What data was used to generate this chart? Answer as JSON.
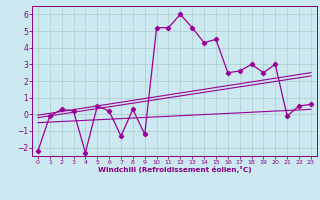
{
  "xlabel": "Windchill (Refroidissement éolien,°C)",
  "xlim": [
    -0.5,
    23.5
  ],
  "ylim": [
    -2.5,
    6.5
  ],
  "yticks": [
    -2,
    -1,
    0,
    1,
    2,
    3,
    4,
    5,
    6
  ],
  "xticks": [
    0,
    1,
    2,
    3,
    4,
    5,
    6,
    7,
    8,
    9,
    10,
    11,
    12,
    13,
    14,
    15,
    16,
    17,
    18,
    19,
    20,
    21,
    22,
    23
  ],
  "bg_color": "#cce8f0",
  "line_color": "#990099",
  "data_x": [
    0,
    1,
    2,
    3,
    4,
    5,
    6,
    7,
    8,
    9,
    10,
    11,
    12,
    13,
    14,
    15,
    16,
    17,
    18,
    19,
    20,
    21,
    22,
    23
  ],
  "data_y": [
    -2.2,
    -0.1,
    0.3,
    0.2,
    -2.3,
    0.5,
    0.2,
    -1.3,
    0.3,
    -1.2,
    5.2,
    5.2,
    6.0,
    5.2,
    4.3,
    4.5,
    2.5,
    2.6,
    3.0,
    2.5,
    3.0,
    -0.1,
    0.5,
    0.6
  ],
  "trend_upper_y0": -0.05,
  "trend_upper_y1": 2.5,
  "trend_mid_y0": -0.2,
  "trend_mid_y1": 2.3,
  "trend_lower_y0": -0.5,
  "trend_lower_y1": 0.3,
  "grid_color": "#aacccc",
  "tick_color": "#880088",
  "spine_color": "#880088"
}
